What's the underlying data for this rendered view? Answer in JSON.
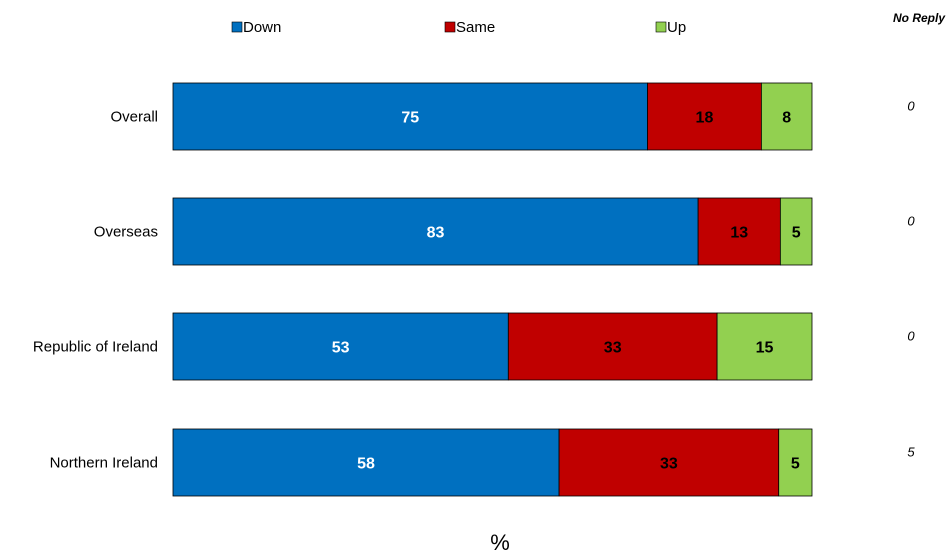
{
  "chart_data": {
    "type": "bar",
    "orientation": "horizontal",
    "stacked": true,
    "categories": [
      "Overall",
      "Overseas",
      "Republic of Ireland",
      "Northern Ireland"
    ],
    "series": [
      {
        "name": "Down",
        "color": "#0070C0",
        "text_color": "#FFFFFF",
        "values": [
          75,
          83,
          53,
          58
        ]
      },
      {
        "name": "Same",
        "color": "#C00000",
        "text_color": "#000000",
        "values": [
          18,
          13,
          33,
          33
        ]
      },
      {
        "name": "Up",
        "color": "#92D050",
        "text_color": "#000000",
        "values": [
          8,
          5,
          15,
          5
        ]
      }
    ],
    "no_reply": {
      "header": "No Reply",
      "values": [
        "0",
        "0",
        "0",
        "5"
      ]
    },
    "xlabel": "%",
    "legend_position": "top",
    "grid": false
  }
}
